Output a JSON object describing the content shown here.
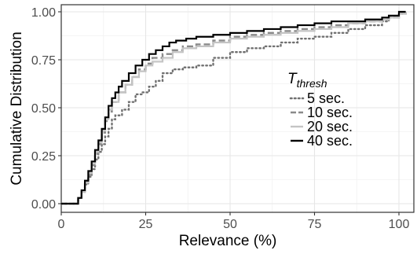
{
  "chart_data": {
    "type": "line",
    "step": true,
    "title": "",
    "xlabel": "Relevance (%)",
    "ylabel": "Cumulative Distribution",
    "xlim": [
      0,
      100
    ],
    "ylim": [
      0,
      1
    ],
    "x_ticks": [
      0,
      25,
      50,
      75,
      100
    ],
    "x_tick_labels": [
      "0",
      "25",
      "50",
      "75",
      "100"
    ],
    "y_ticks": [
      0,
      0.25,
      0.5,
      0.75,
      1
    ],
    "y_tick_labels": [
      "0.00",
      "0.25",
      "0.50",
      "0.75",
      "1.00"
    ],
    "grid": true,
    "legend": {
      "placement": "right",
      "title_main": "T",
      "title_sub": "thresh"
    },
    "series": [
      {
        "name": "5 sec.",
        "dash": "dotted",
        "color": "#707070",
        "x": [
          0,
          4,
          5,
          6,
          7,
          8,
          9,
          10,
          11,
          12,
          13,
          14,
          15,
          16,
          18,
          20,
          22,
          24,
          26,
          28,
          30,
          33,
          36,
          40,
          45,
          50,
          55,
          60,
          65,
          70,
          75,
          80,
          85,
          90,
          95,
          97,
          100,
          102
        ],
        "y": [
          0,
          0,
          0.03,
          0.06,
          0.1,
          0.14,
          0.18,
          0.23,
          0.27,
          0.31,
          0.35,
          0.39,
          0.44,
          0.46,
          0.49,
          0.53,
          0.57,
          0.58,
          0.61,
          0.64,
          0.68,
          0.7,
          0.71,
          0.72,
          0.76,
          0.79,
          0.81,
          0.82,
          0.84,
          0.86,
          0.87,
          0.89,
          0.91,
          0.93,
          0.95,
          0.97,
          0.99,
          1.0
        ]
      },
      {
        "name": "10 sec.",
        "dash": "dashed",
        "color": "#8a8a8a",
        "x": [
          0,
          4,
          5,
          6,
          7,
          8,
          9,
          10,
          11,
          12,
          13,
          14,
          15,
          17,
          19,
          21,
          23,
          25,
          27,
          30,
          33,
          36,
          40,
          45,
          50,
          55,
          60,
          65,
          70,
          75,
          80,
          85,
          90,
          95,
          97,
          100,
          102
        ],
        "y": [
          0,
          0,
          0.03,
          0.06,
          0.11,
          0.15,
          0.2,
          0.26,
          0.31,
          0.37,
          0.43,
          0.48,
          0.53,
          0.58,
          0.62,
          0.66,
          0.7,
          0.73,
          0.76,
          0.78,
          0.8,
          0.82,
          0.83,
          0.85,
          0.87,
          0.88,
          0.89,
          0.9,
          0.91,
          0.92,
          0.93,
          0.94,
          0.95,
          0.96,
          0.97,
          0.99,
          1.0
        ]
      },
      {
        "name": "20 sec.",
        "dash": "solid",
        "color": "#c4c4c4",
        "x": [
          0,
          4,
          5,
          6,
          7,
          8,
          9,
          10,
          11,
          12,
          13,
          14,
          15,
          17,
          19,
          21,
          23,
          25,
          27,
          30,
          33,
          36,
          40,
          45,
          50,
          55,
          60,
          65,
          70,
          75,
          80,
          85,
          90,
          95,
          97,
          100,
          102
        ],
        "y": [
          0,
          0,
          0.03,
          0.06,
          0.11,
          0.16,
          0.21,
          0.27,
          0.32,
          0.38,
          0.44,
          0.49,
          0.53,
          0.58,
          0.62,
          0.66,
          0.69,
          0.72,
          0.74,
          0.76,
          0.79,
          0.81,
          0.82,
          0.84,
          0.86,
          0.87,
          0.88,
          0.89,
          0.9,
          0.91,
          0.92,
          0.94,
          0.95,
          0.96,
          0.97,
          0.99,
          1.0
        ]
      },
      {
        "name": "40 sec.",
        "dash": "solid",
        "color": "#000000",
        "x": [
          0,
          4,
          5,
          6,
          7,
          8,
          9,
          10,
          11,
          12,
          13,
          14,
          15,
          16,
          17,
          18,
          20,
          22,
          24,
          26,
          28,
          30,
          32,
          34,
          37,
          40,
          45,
          50,
          55,
          60,
          65,
          70,
          75,
          80,
          85,
          90,
          95,
          97,
          100,
          102
        ],
        "y": [
          0,
          0,
          0.03,
          0.07,
          0.12,
          0.17,
          0.22,
          0.28,
          0.33,
          0.39,
          0.45,
          0.51,
          0.55,
          0.58,
          0.61,
          0.64,
          0.68,
          0.72,
          0.75,
          0.78,
          0.8,
          0.82,
          0.84,
          0.85,
          0.86,
          0.87,
          0.88,
          0.89,
          0.9,
          0.91,
          0.92,
          0.93,
          0.94,
          0.95,
          0.95,
          0.96,
          0.97,
          0.98,
          1.0,
          1.0
        ]
      }
    ]
  }
}
